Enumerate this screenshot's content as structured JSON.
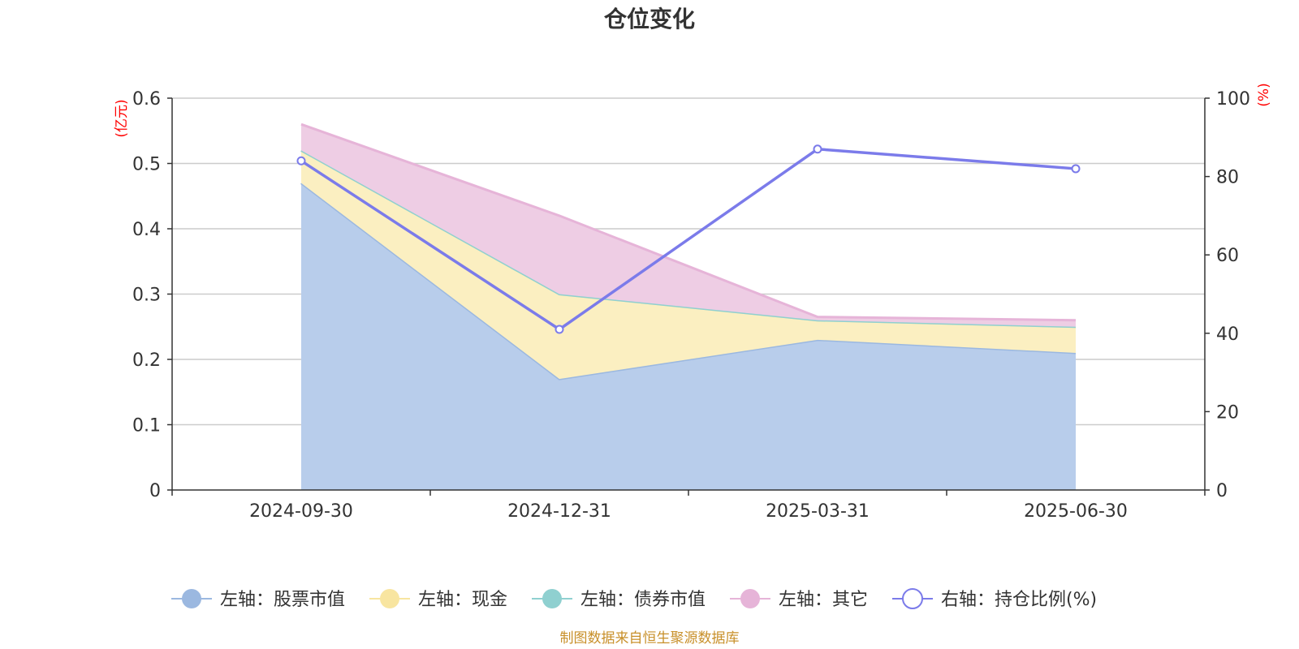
{
  "chart_data": {
    "type": "area",
    "title": "仓位变化",
    "categories": [
      "2024-09-30",
      "2024-12-31",
      "2025-03-31",
      "2025-06-30"
    ],
    "left_axis": {
      "unit": "(亿元)",
      "ylim": [
        0,
        0.6
      ],
      "ticks": [
        "0",
        "0.1",
        "0.2",
        "0.3",
        "0.4",
        "0.5",
        "0.6"
      ]
    },
    "right_axis": {
      "unit": "(%)",
      "ylim": [
        0,
        100
      ],
      "ticks": [
        "0",
        "20",
        "40",
        "60",
        "80",
        "100"
      ]
    },
    "stacked": true,
    "series": [
      {
        "name": "左轴：股票市值",
        "axis": "left",
        "type": "area",
        "color": "#9bb8e0",
        "fill": "#b8cdeb",
        "values": [
          0.47,
          0.17,
          0.23,
          0.21
        ]
      },
      {
        "name": "左轴：现金",
        "axis": "left",
        "type": "area",
        "color": "#f8e5a0",
        "fill": "#fbefc1",
        "values": [
          0.05,
          0.13,
          0.03,
          0.04
        ]
      },
      {
        "name": "左轴：债券市值",
        "axis": "left",
        "type": "area",
        "color": "#8fd0d0",
        "fill": "#b9e3e3",
        "values": [
          0,
          0,
          0,
          0
        ]
      },
      {
        "name": "左轴：其它",
        "axis": "left",
        "type": "area",
        "color": "#e6b4d8",
        "fill": "#eecde4",
        "values": [
          0.04,
          0.12,
          0.005,
          0.01
        ]
      },
      {
        "name": "右轴：持仓比例(%)",
        "axis": "right",
        "type": "line",
        "color": "#7b7bea",
        "values": [
          84,
          41,
          87,
          82
        ]
      }
    ],
    "grid": true,
    "legend_position": "bottom"
  },
  "footer": {
    "source": "制图数据来自恒生聚源数据库"
  }
}
